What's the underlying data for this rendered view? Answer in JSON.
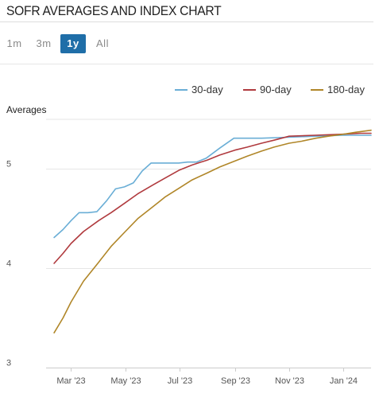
{
  "header": {
    "title": "SOFR AVERAGES AND INDEX CHART"
  },
  "range_tabs": [
    {
      "label": "1m",
      "active": false
    },
    {
      "label": "3m",
      "active": false
    },
    {
      "label": "1y",
      "active": true
    },
    {
      "label": "All",
      "active": false
    }
  ],
  "colors": {
    "accent": "#1f6ea8",
    "series_30": "#6aaed6",
    "series_90": "#b03a3e",
    "series_180": "#b08628"
  },
  "chart_data": {
    "type": "line",
    "title": "",
    "ylabel": "Averages",
    "xlabel": "",
    "ylim": [
      3,
      5.5
    ],
    "xlim": [
      "2023-02-01",
      "2024-02-01"
    ],
    "y_ticks": [
      3,
      4,
      5
    ],
    "x_ticks": [
      {
        "label": "Mar '23",
        "date": "2023-03-01"
      },
      {
        "label": "May '23",
        "date": "2023-05-01"
      },
      {
        "label": "Jul '23",
        "date": "2023-07-01"
      },
      {
        "label": "Sep '23",
        "date": "2023-09-01"
      },
      {
        "label": "Nov '23",
        "date": "2023-11-01"
      },
      {
        "label": "Jan '24",
        "date": "2024-01-01"
      }
    ],
    "legend_position": "top-right",
    "grid": "horizontal",
    "series": [
      {
        "name": "30-day",
        "color": "#6aaed6",
        "x": [
          "2023-02-10",
          "2023-02-20",
          "2023-03-01",
          "2023-03-10",
          "2023-03-20",
          "2023-03-30",
          "2023-04-10",
          "2023-04-20",
          "2023-04-30",
          "2023-05-10",
          "2023-05-20",
          "2023-05-30",
          "2023-06-10",
          "2023-06-20",
          "2023-06-30",
          "2023-07-10",
          "2023-07-20",
          "2023-07-31",
          "2023-08-15",
          "2023-08-31",
          "2023-09-15",
          "2023-10-01",
          "2023-10-31",
          "2023-11-30",
          "2023-12-31",
          "2024-01-20",
          "2024-02-01"
        ],
        "values": [
          4.31,
          4.39,
          4.48,
          4.56,
          4.56,
          4.57,
          4.68,
          4.8,
          4.82,
          4.86,
          4.98,
          5.06,
          5.06,
          5.06,
          5.06,
          5.07,
          5.07,
          5.11,
          5.21,
          5.31,
          5.31,
          5.31,
          5.32,
          5.33,
          5.34,
          5.34,
          5.34
        ]
      },
      {
        "name": "90-day",
        "color": "#b03a3e",
        "x": [
          "2023-02-10",
          "2023-02-20",
          "2023-03-01",
          "2023-03-15",
          "2023-04-01",
          "2023-04-15",
          "2023-05-01",
          "2023-05-15",
          "2023-06-01",
          "2023-06-15",
          "2023-07-01",
          "2023-07-15",
          "2023-08-01",
          "2023-08-15",
          "2023-09-01",
          "2023-09-15",
          "2023-10-01",
          "2023-10-15",
          "2023-11-01",
          "2023-11-30",
          "2023-12-31",
          "2024-01-20",
          "2024-02-01"
        ],
        "values": [
          4.05,
          4.15,
          4.25,
          4.37,
          4.48,
          4.56,
          4.66,
          4.75,
          4.84,
          4.91,
          4.99,
          5.04,
          5.09,
          5.14,
          5.19,
          5.22,
          5.26,
          5.29,
          5.33,
          5.34,
          5.35,
          5.36,
          5.36
        ]
      },
      {
        "name": "180-day",
        "color": "#b08628",
        "x": [
          "2023-02-10",
          "2023-02-20",
          "2023-03-01",
          "2023-03-15",
          "2023-04-01",
          "2023-04-15",
          "2023-05-01",
          "2023-05-15",
          "2023-06-01",
          "2023-06-15",
          "2023-07-01",
          "2023-07-15",
          "2023-08-01",
          "2023-08-15",
          "2023-09-01",
          "2023-09-15",
          "2023-10-01",
          "2023-10-15",
          "2023-11-01",
          "2023-11-15",
          "2023-12-01",
          "2023-12-15",
          "2024-01-01",
          "2024-01-15",
          "2024-02-01"
        ],
        "values": [
          3.35,
          3.5,
          3.66,
          3.87,
          4.06,
          4.22,
          4.37,
          4.5,
          4.62,
          4.72,
          4.81,
          4.89,
          4.96,
          5.02,
          5.08,
          5.13,
          5.18,
          5.22,
          5.26,
          5.28,
          5.31,
          5.33,
          5.35,
          5.37,
          5.39
        ]
      }
    ]
  }
}
